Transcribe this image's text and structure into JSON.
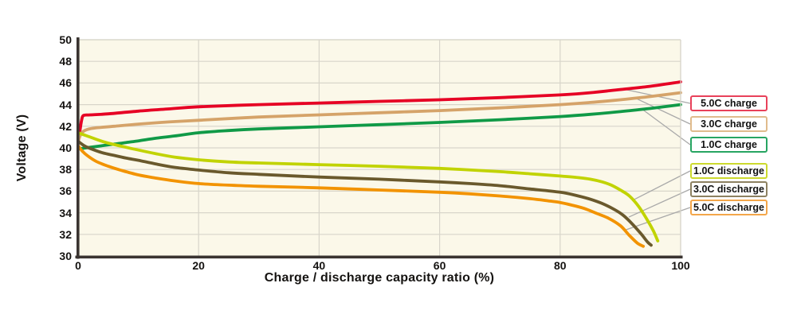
{
  "chart_data": {
    "type": "line",
    "title": "",
    "xlabel": "Charge / discharge capacity ratio (%)",
    "ylabel": "Voltage (V)",
    "xlim": [
      0,
      100
    ],
    "ylim": [
      30,
      50
    ],
    "x_ticks": [
      0,
      20,
      40,
      60,
      80,
      100
    ],
    "y_ticks": [
      30,
      32,
      34,
      36,
      38,
      40,
      42,
      44,
      46,
      48,
      50
    ],
    "grid": true,
    "legend_position": "right",
    "series": [
      {
        "name": "5.0C charge",
        "color": "#e60024",
        "points": [
          [
            0,
            40.4
          ],
          [
            0.3,
            41.6
          ],
          [
            0.6,
            42.6
          ],
          [
            0.9,
            43.0
          ],
          [
            2,
            43.05
          ],
          [
            5,
            43.15
          ],
          [
            10,
            43.4
          ],
          [
            15,
            43.6
          ],
          [
            20,
            43.8
          ],
          [
            30,
            44.0
          ],
          [
            40,
            44.15
          ],
          [
            50,
            44.3
          ],
          [
            60,
            44.45
          ],
          [
            70,
            44.65
          ],
          [
            80,
            44.9
          ],
          [
            85,
            45.1
          ],
          [
            90,
            45.4
          ],
          [
            95,
            45.7
          ],
          [
            100,
            46.1
          ]
        ]
      },
      {
        "name": "3.0C charge",
        "color": "#d5a369",
        "points": [
          [
            0,
            40.6
          ],
          [
            0.4,
            41.2
          ],
          [
            0.8,
            41.5
          ],
          [
            1.5,
            41.7
          ],
          [
            3,
            41.85
          ],
          [
            6,
            42.0
          ],
          [
            10,
            42.2
          ],
          [
            15,
            42.4
          ],
          [
            20,
            42.55
          ],
          [
            30,
            42.85
          ],
          [
            40,
            43.05
          ],
          [
            50,
            43.25
          ],
          [
            60,
            43.45
          ],
          [
            70,
            43.7
          ],
          [
            80,
            44.0
          ],
          [
            85,
            44.2
          ],
          [
            90,
            44.45
          ],
          [
            95,
            44.75
          ],
          [
            100,
            45.1
          ]
        ]
      },
      {
        "name": "1.0C charge",
        "color": "#109a47",
        "points": [
          [
            0,
            39.9
          ],
          [
            2,
            40.05
          ],
          [
            4,
            40.2
          ],
          [
            6,
            40.35
          ],
          [
            8,
            40.5
          ],
          [
            10,
            40.65
          ],
          [
            13,
            40.9
          ],
          [
            16,
            41.1
          ],
          [
            20,
            41.4
          ],
          [
            25,
            41.6
          ],
          [
            30,
            41.75
          ],
          [
            40,
            41.95
          ],
          [
            50,
            42.15
          ],
          [
            60,
            42.35
          ],
          [
            70,
            42.6
          ],
          [
            80,
            42.9
          ],
          [
            85,
            43.1
          ],
          [
            90,
            43.35
          ],
          [
            95,
            43.65
          ],
          [
            100,
            44.0
          ]
        ]
      },
      {
        "name": "1.0C discharge",
        "color": "#c1d301",
        "points": [
          [
            0,
            41.4
          ],
          [
            1,
            41.2
          ],
          [
            2,
            41.0
          ],
          [
            4,
            40.6
          ],
          [
            6,
            40.3
          ],
          [
            8,
            40.05
          ],
          [
            10,
            39.8
          ],
          [
            13,
            39.45
          ],
          [
            16,
            39.15
          ],
          [
            20,
            38.9
          ],
          [
            25,
            38.7
          ],
          [
            30,
            38.6
          ],
          [
            40,
            38.45
          ],
          [
            50,
            38.3
          ],
          [
            60,
            38.1
          ],
          [
            70,
            37.8
          ],
          [
            75,
            37.6
          ],
          [
            80,
            37.4
          ],
          [
            83,
            37.25
          ],
          [
            85,
            37.1
          ],
          [
            87,
            36.85
          ],
          [
            88.5,
            36.55
          ],
          [
            90,
            36.1
          ],
          [
            91.5,
            35.55
          ],
          [
            93,
            34.6
          ],
          [
            94.5,
            33.3
          ],
          [
            95.5,
            32.3
          ],
          [
            96.2,
            31.4
          ]
        ]
      },
      {
        "name": "3.0C discharge",
        "color": "#6a592c",
        "points": [
          [
            0,
            40.6
          ],
          [
            1,
            40.2
          ],
          [
            2,
            39.95
          ],
          [
            4,
            39.55
          ],
          [
            6,
            39.3
          ],
          [
            8,
            39.05
          ],
          [
            10,
            38.85
          ],
          [
            13,
            38.5
          ],
          [
            16,
            38.2
          ],
          [
            20,
            37.95
          ],
          [
            25,
            37.7
          ],
          [
            30,
            37.55
          ],
          [
            40,
            37.3
          ],
          [
            50,
            37.1
          ],
          [
            60,
            36.85
          ],
          [
            65,
            36.7
          ],
          [
            70,
            36.5
          ],
          [
            75,
            36.2
          ],
          [
            80,
            35.9
          ],
          [
            83,
            35.55
          ],
          [
            85,
            35.25
          ],
          [
            87,
            34.85
          ],
          [
            89,
            34.3
          ],
          [
            90.5,
            33.75
          ],
          [
            92,
            32.95
          ],
          [
            93.5,
            32.0
          ],
          [
            94.5,
            31.3
          ],
          [
            95.1,
            31.0
          ]
        ]
      },
      {
        "name": "5.0C discharge",
        "color": "#f29300",
        "points": [
          [
            0,
            40.2
          ],
          [
            0.7,
            39.7
          ],
          [
            1.5,
            39.3
          ],
          [
            3,
            38.75
          ],
          [
            5,
            38.3
          ],
          [
            7,
            37.95
          ],
          [
            10,
            37.5
          ],
          [
            13,
            37.2
          ],
          [
            16,
            36.95
          ],
          [
            20,
            36.7
          ],
          [
            25,
            36.55
          ],
          [
            30,
            36.45
          ],
          [
            40,
            36.3
          ],
          [
            50,
            36.1
          ],
          [
            60,
            35.9
          ],
          [
            65,
            35.75
          ],
          [
            70,
            35.55
          ],
          [
            75,
            35.3
          ],
          [
            78,
            35.1
          ],
          [
            80,
            34.95
          ],
          [
            82,
            34.7
          ],
          [
            84,
            34.4
          ],
          [
            86,
            33.95
          ],
          [
            88,
            33.5
          ],
          [
            90,
            32.8
          ],
          [
            91.5,
            31.9
          ],
          [
            92.8,
            31.2
          ],
          [
            93.8,
            30.9
          ]
        ]
      }
    ],
    "legend": {
      "groups": [
        {
          "name": "charge",
          "items": [
            {
              "label": "5.0C charge",
              "border": "#e8415a",
              "attach": [
                90.0,
                45.5
              ]
            },
            {
              "label": "3.0C charge",
              "border": "#e0bb8c",
              "attach": [
                92.5,
                44.6
              ]
            },
            {
              "label": "1.0C charge",
              "border": "#27a562",
              "attach": [
                93.8,
                43.5
              ]
            }
          ]
        },
        {
          "name": "discharge",
          "items": [
            {
              "label": "1.0C discharge",
              "border": "#ccd92e",
              "attach": [
                92.2,
                35.2
              ]
            },
            {
              "label": "3.0C discharge",
              "border": "#8d8161",
              "attach": [
                91.4,
                33.6
              ]
            },
            {
              "label": "5.0C discharge",
              "border": "#f3a64a",
              "attach": [
                90.8,
                32.4
              ]
            }
          ]
        }
      ]
    }
  },
  "colors": {
    "background": "#ffffff",
    "plot_background": "#fbf8e9",
    "gridline": "#d8d5ca",
    "axis": "#3a3431",
    "leader_line": "#a9a9a9",
    "text": "#151311"
  }
}
